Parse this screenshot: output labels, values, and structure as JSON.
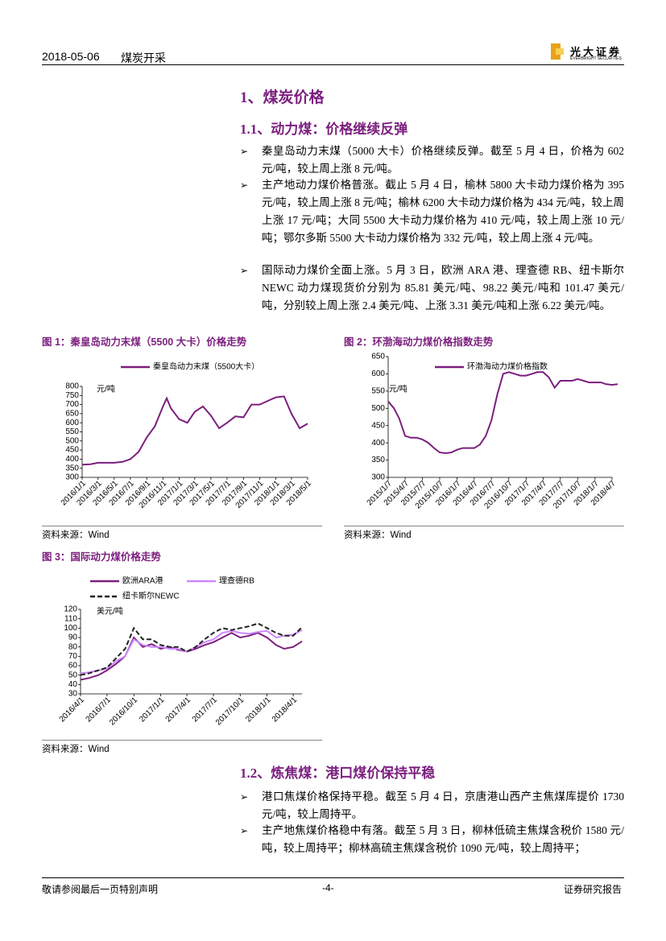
{
  "header": {
    "date": "2018-05-06",
    "category": "煤炭开采",
    "logo": "光大证券",
    "logo_en": "EVERBRIGHT SECURITIES"
  },
  "section": {
    "title": "1、煤炭价格"
  },
  "sub1": {
    "title": "1.1、动力煤：价格继续反弹",
    "bullets": [
      "秦皇岛动力末煤（5000 大卡）价格继续反弹。截至 5 月 4 日，价格为 602 元/吨，较上周上涨 8 元/吨。",
      "主产地动力煤价格普涨。截止 5 月 4 日，榆林 5800 大卡动力煤价格为 395 元/吨，较上周上涨 8 元/吨；榆林 6200 大卡动力煤价格为 434 元/吨，较上周上涨 17 元/吨；大同 5500 大卡动力煤价格为 410 元/吨，较上周上涨 10 元/吨；鄂尔多斯 5500 大卡动力煤价格为 332 元/吨，较上周上涨 4 元/吨。",
      "国际动力煤价全面上涨。5 月 3 日，欧洲 ARA 港、理查德 RB、纽卡斯尔 NEWC 动力煤现货价分别为 85.81 美元/吨、98.22 美元/吨和 101.47 美元/吨，分别较上周上涨 2.4 美元/吨、上涨 3.31 美元/吨和上涨 6.22 美元/吨。"
    ]
  },
  "figures": [
    {
      "title": "图 1：秦皇岛动力末煤（5500 大卡）价格走势",
      "source": "资料来源：Wind",
      "chart": {
        "type": "line",
        "unit": "元/吨",
        "ylim": [
          300,
          800
        ],
        "yticks": [
          300,
          350,
          400,
          450,
          500,
          550,
          600,
          650,
          700,
          750,
          800
        ],
        "xlim": [
          "2016/1/1",
          "2018/5/1"
        ],
        "xticks": [
          "2016/1/1",
          "2016/3/1",
          "2016/5/1",
          "2016/7/1",
          "2016/9/1",
          "2016/11/1",
          "2017/1/1",
          "2017/3/1",
          "2017/5/1",
          "2017/7/1",
          "2017/9/1",
          "2017/11/1",
          "2018/1/1",
          "2018/3/1",
          "2018/5/1"
        ],
        "x": [
          "2016/1/1",
          "2016/2/1",
          "2016/3/1",
          "2016/4/1",
          "2016/5/1",
          "2016/6/1",
          "2016/7/1",
          "2016/8/1",
          "2016/9/1",
          "2016/10/1",
          "2016/11/1",
          "2016/11/15",
          "2016/12/1",
          "2017/1/1",
          "2017/2/1",
          "2017/3/1",
          "2017/4/1",
          "2017/5/1",
          "2017/6/1",
          "2017/7/1",
          "2017/8/1",
          "2017/9/1",
          "2017/10/1",
          "2017/11/1",
          "2017/12/1",
          "2018/1/1",
          "2018/2/1",
          "2018/3/1",
          "2018/4/1",
          "2018/5/1"
        ],
        "series": [
          {
            "name": "秦皇岛动力末煤（5500大卡）",
            "color": "#7b1f7e",
            "style": "solid",
            "values": [
              370,
              372,
              380,
              380,
              380,
              385,
              400,
              440,
              520,
              580,
              690,
              735,
              680,
              620,
              600,
              660,
              690,
              640,
              570,
              600,
              635,
              630,
              700,
              700,
              720,
              740,
              745,
              650,
              570,
              595
            ]
          }
        ]
      }
    },
    {
      "title": "图 2：环渤海动力煤价格指数走势",
      "source": "资料来源：Wind",
      "chart": {
        "type": "line",
        "unit": "元/吨",
        "ylim": [
          300,
          650
        ],
        "yticks": [
          300,
          350,
          400,
          450,
          500,
          550,
          600,
          650
        ],
        "xlim": [
          "2015/1/7",
          "2018/4/7"
        ],
        "xticks": [
          "2015/1/7",
          "2015/4/7",
          "2015/7/7",
          "2015/10/7",
          "2016/1/7",
          "2016/4/7",
          "2016/7/7",
          "2016/10/7",
          "2017/1/7",
          "2017/4/7",
          "2017/7/7",
          "2017/10/7",
          "2018/1/7",
          "2018/4/7"
        ],
        "x": [
          "2015/1/7",
          "2015/2/7",
          "2015/3/7",
          "2015/4/7",
          "2015/5/7",
          "2015/6/7",
          "2015/7/7",
          "2015/8/7",
          "2015/9/7",
          "2015/10/7",
          "2015/11/7",
          "2015/12/7",
          "2016/1/7",
          "2016/2/7",
          "2016/3/7",
          "2016/4/7",
          "2016/5/7",
          "2016/6/7",
          "2016/7/7",
          "2016/8/7",
          "2016/9/7",
          "2016/10/7",
          "2016/11/7",
          "2016/12/7",
          "2017/1/7",
          "2017/2/7",
          "2017/3/7",
          "2017/4/7",
          "2017/5/7",
          "2017/6/7",
          "2017/7/7",
          "2017/8/7",
          "2017/9/7",
          "2017/10/7",
          "2017/11/7",
          "2017/12/7",
          "2018/1/7",
          "2018/2/7",
          "2018/3/7",
          "2018/4/7",
          "2018/5/7"
        ],
        "series": [
          {
            "name": "环渤海动力煤价格指数",
            "color": "#7b1f7e",
            "style": "solid",
            "values": [
              520,
              500,
              470,
              420,
              415,
              415,
              410,
              400,
              385,
              372,
              370,
              372,
              380,
              385,
              385,
              385,
              395,
              420,
              465,
              540,
              600,
              605,
              600,
              595,
              595,
              600,
              605,
              605,
              590,
              560,
              580,
              580,
              580,
              585,
              580,
              575,
              575,
              575,
              570,
              568,
              570
            ]
          }
        ]
      }
    },
    {
      "title": "图 3：国际动力煤价格走势",
      "source": "资料来源：Wind",
      "chart": {
        "type": "line",
        "unit": "美元/吨",
        "ylim": [
          30,
          120
        ],
        "yticks": [
          30,
          40,
          50,
          60,
          70,
          80,
          90,
          100,
          110,
          120
        ],
        "xlim": [
          "2016/4/1",
          "2018/5/1"
        ],
        "xticks": [
          "2016/4/1",
          "2016/7/1",
          "2016/10/1",
          "2017/1/1",
          "2017/4/1",
          "2017/7/1",
          "2017/10/1",
          "2018/1/1",
          "2018/4/1"
        ],
        "x": [
          "2016/4/1",
          "2016/5/1",
          "2016/6/1",
          "2016/7/1",
          "2016/8/1",
          "2016/9/1",
          "2016/10/1",
          "2016/11/1",
          "2016/12/1",
          "2017/1/1",
          "2017/2/1",
          "2017/3/1",
          "2017/4/1",
          "2017/5/1",
          "2017/6/1",
          "2017/7/1",
          "2017/8/1",
          "2017/9/1",
          "2017/10/1",
          "2017/11/1",
          "2017/12/1",
          "2018/1/1",
          "2018/2/1",
          "2018/3/1",
          "2018/4/1",
          "2018/5/1"
        ],
        "series": [
          {
            "name": "欧洲ARA港",
            "color": "#7b1f7e",
            "style": "solid",
            "values": [
              45,
              47,
              50,
              55,
              62,
              70,
              90,
              80,
              83,
              78,
              80,
              77,
              75,
              78,
              82,
              85,
              90,
              95,
              90,
              92,
              95,
              90,
              82,
              78,
              80,
              86
            ]
          },
          {
            "name": "理查德RB",
            "color": "#cc88ff",
            "style": "solid",
            "values": [
              52,
              53,
              55,
              57,
              65,
              70,
              88,
              82,
              80,
              80,
              78,
              78,
              75,
              80,
              85,
              88,
              95,
              97,
              95,
              94,
              96,
              97,
              90,
              92,
              93,
              98
            ]
          },
          {
            "name": "纽卡斯尔NEWC",
            "color": "#222222",
            "style": "dashed",
            "values": [
              50,
              52,
              55,
              58,
              68,
              78,
              100,
              88,
              88,
              82,
              80,
              80,
              75,
              80,
              88,
              95,
              100,
              98,
              100,
              102,
              105,
              100,
              95,
              92,
              92,
              101
            ]
          }
        ]
      }
    }
  ],
  "sub2": {
    "title": "1.2、炼焦煤：港口煤价保持平稳",
    "bullets": [
      "港口焦煤价格保持平稳。截至 5 月 4 日，京唐港山西产主焦煤库提价 1730 元/吨，较上周持平。",
      "主产地焦煤价格稳中有落。截至 5 月 3 日，柳林低硫主焦煤含税价 1580 元/吨，较上周持平；柳林高硫主焦煤含税价 1090 元/吨，较上周持平；"
    ]
  },
  "footer": {
    "left": "敬请参阅最后一页特别声明",
    "page": "-4-",
    "right": "证券研究报告"
  }
}
